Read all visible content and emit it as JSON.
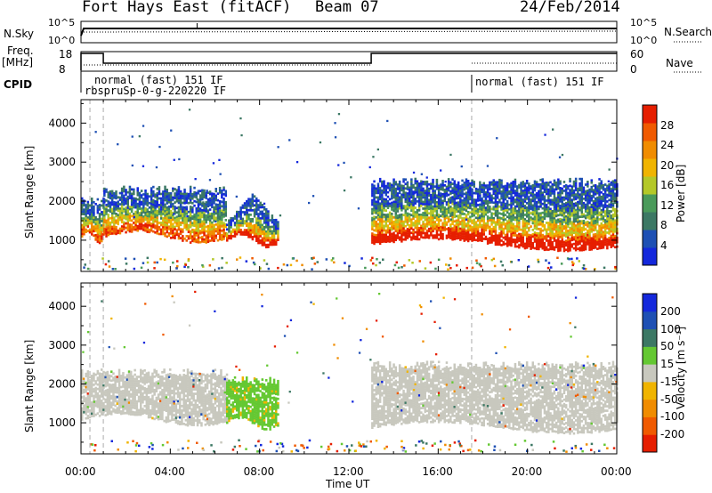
{
  "header": {
    "station": "Fort Hays East (fitACF)",
    "beam": "Beam 07",
    "date": "24/Feb/2014"
  },
  "strips": {
    "nsky": {
      "label": "N.Sky",
      "tick_top": "10^5",
      "tick_bottom": "10^0",
      "right_label": "N.Search",
      "right_tick_top": "10^5",
      "right_tick_bottom": "10^0"
    },
    "freq": {
      "label_top": "Freq.",
      "label_unit": "[MHz]",
      "tick_top": "18",
      "tick_bottom": "8",
      "right_label": "Nave",
      "right_tick_top": "60",
      "right_tick_bottom": "0"
    },
    "cpid": {
      "label": "CPID",
      "modes": [
        "normal (fast) 151 IF",
        "rbspruSp-0-g-220220 IF",
        "normal (fast) 151 IF"
      ]
    }
  },
  "power_panel": {
    "ylabel": "Slant Range [km]",
    "colorbar_label": "Power [dB]",
    "colorbar_ticks": [
      "28",
      "24",
      "20",
      "16",
      "12",
      "8",
      "4"
    ]
  },
  "velocity_panel": {
    "ylabel": "Slant Range [km]",
    "colorbar_label": "Velocity [m s⁻¹]",
    "colorbar_ticks": [
      "200",
      "100",
      "50",
      "15",
      "-15",
      "-50",
      "-100",
      "-200"
    ]
  },
  "xaxis": {
    "label": "Time UT",
    "ticks": [
      "00:00",
      "04:00",
      "08:00",
      "12:00",
      "16:00",
      "20:00",
      "00:00"
    ]
  },
  "colors": {
    "power_scale": [
      "#1428dc",
      "#1e50b4",
      "#3c7864",
      "#4a9a5a",
      "#b4c828",
      "#f0b400",
      "#f08c00",
      "#f05a00",
      "#e61e00"
    ],
    "velocity_scale": [
      "#e61e00",
      "#f05a00",
      "#f08c00",
      "#f0b400",
      "#c8c8be",
      "#64c832",
      "#3c7864",
      "#1e50b4",
      "#1428dc"
    ],
    "ground_scatter": "#c8c8be"
  },
  "chart_data": [
    {
      "type": "heatmap",
      "panel": "power",
      "xlabel": "Time UT",
      "ylabel": "Slant Range [km]",
      "xlim": [
        0,
        24
      ],
      "ylim": [
        200,
        4600
      ],
      "y_ticks": [
        1000,
        2000,
        3000,
        4000
      ],
      "zlabel": "Power [dB]",
      "zlim": [
        0,
        32
      ],
      "bands": [
        {
          "t_start": 0.0,
          "t_end": 1.0,
          "range_low": 1100,
          "range_high": 2100,
          "peak_power": 24
        },
        {
          "t_start": 1.0,
          "t_end": 6.5,
          "range_low": 1100,
          "range_high": 2400,
          "peak_power": 24
        },
        {
          "t_start": 6.5,
          "t_end": 8.8,
          "range_low": 1000,
          "range_high": 2200,
          "peak_power": 28
        },
        {
          "t_start": 13.0,
          "t_end": 24.0,
          "range_low": 900,
          "range_high": 2600,
          "peak_power": 28
        }
      ]
    },
    {
      "type": "heatmap",
      "panel": "velocity",
      "xlabel": "Time UT",
      "ylabel": "Slant Range [km]",
      "xlim": [
        0,
        24
      ],
      "ylim": [
        200,
        4600
      ],
      "y_ticks": [
        1000,
        2000,
        3000,
        4000
      ],
      "zlabel": "Velocity [m s⁻¹]",
      "zlim": [
        -200,
        200
      ],
      "bands": [
        {
          "t_start": 0.0,
          "t_end": 6.5,
          "range_low": 1100,
          "range_high": 2400,
          "velocity": 0
        },
        {
          "t_start": 6.5,
          "t_end": 8.8,
          "range_low": 1000,
          "range_high": 2200,
          "velocity": 50
        },
        {
          "t_start": 13.0,
          "t_end": 24.0,
          "range_low": 900,
          "range_high": 2600,
          "velocity": 0
        }
      ]
    }
  ]
}
